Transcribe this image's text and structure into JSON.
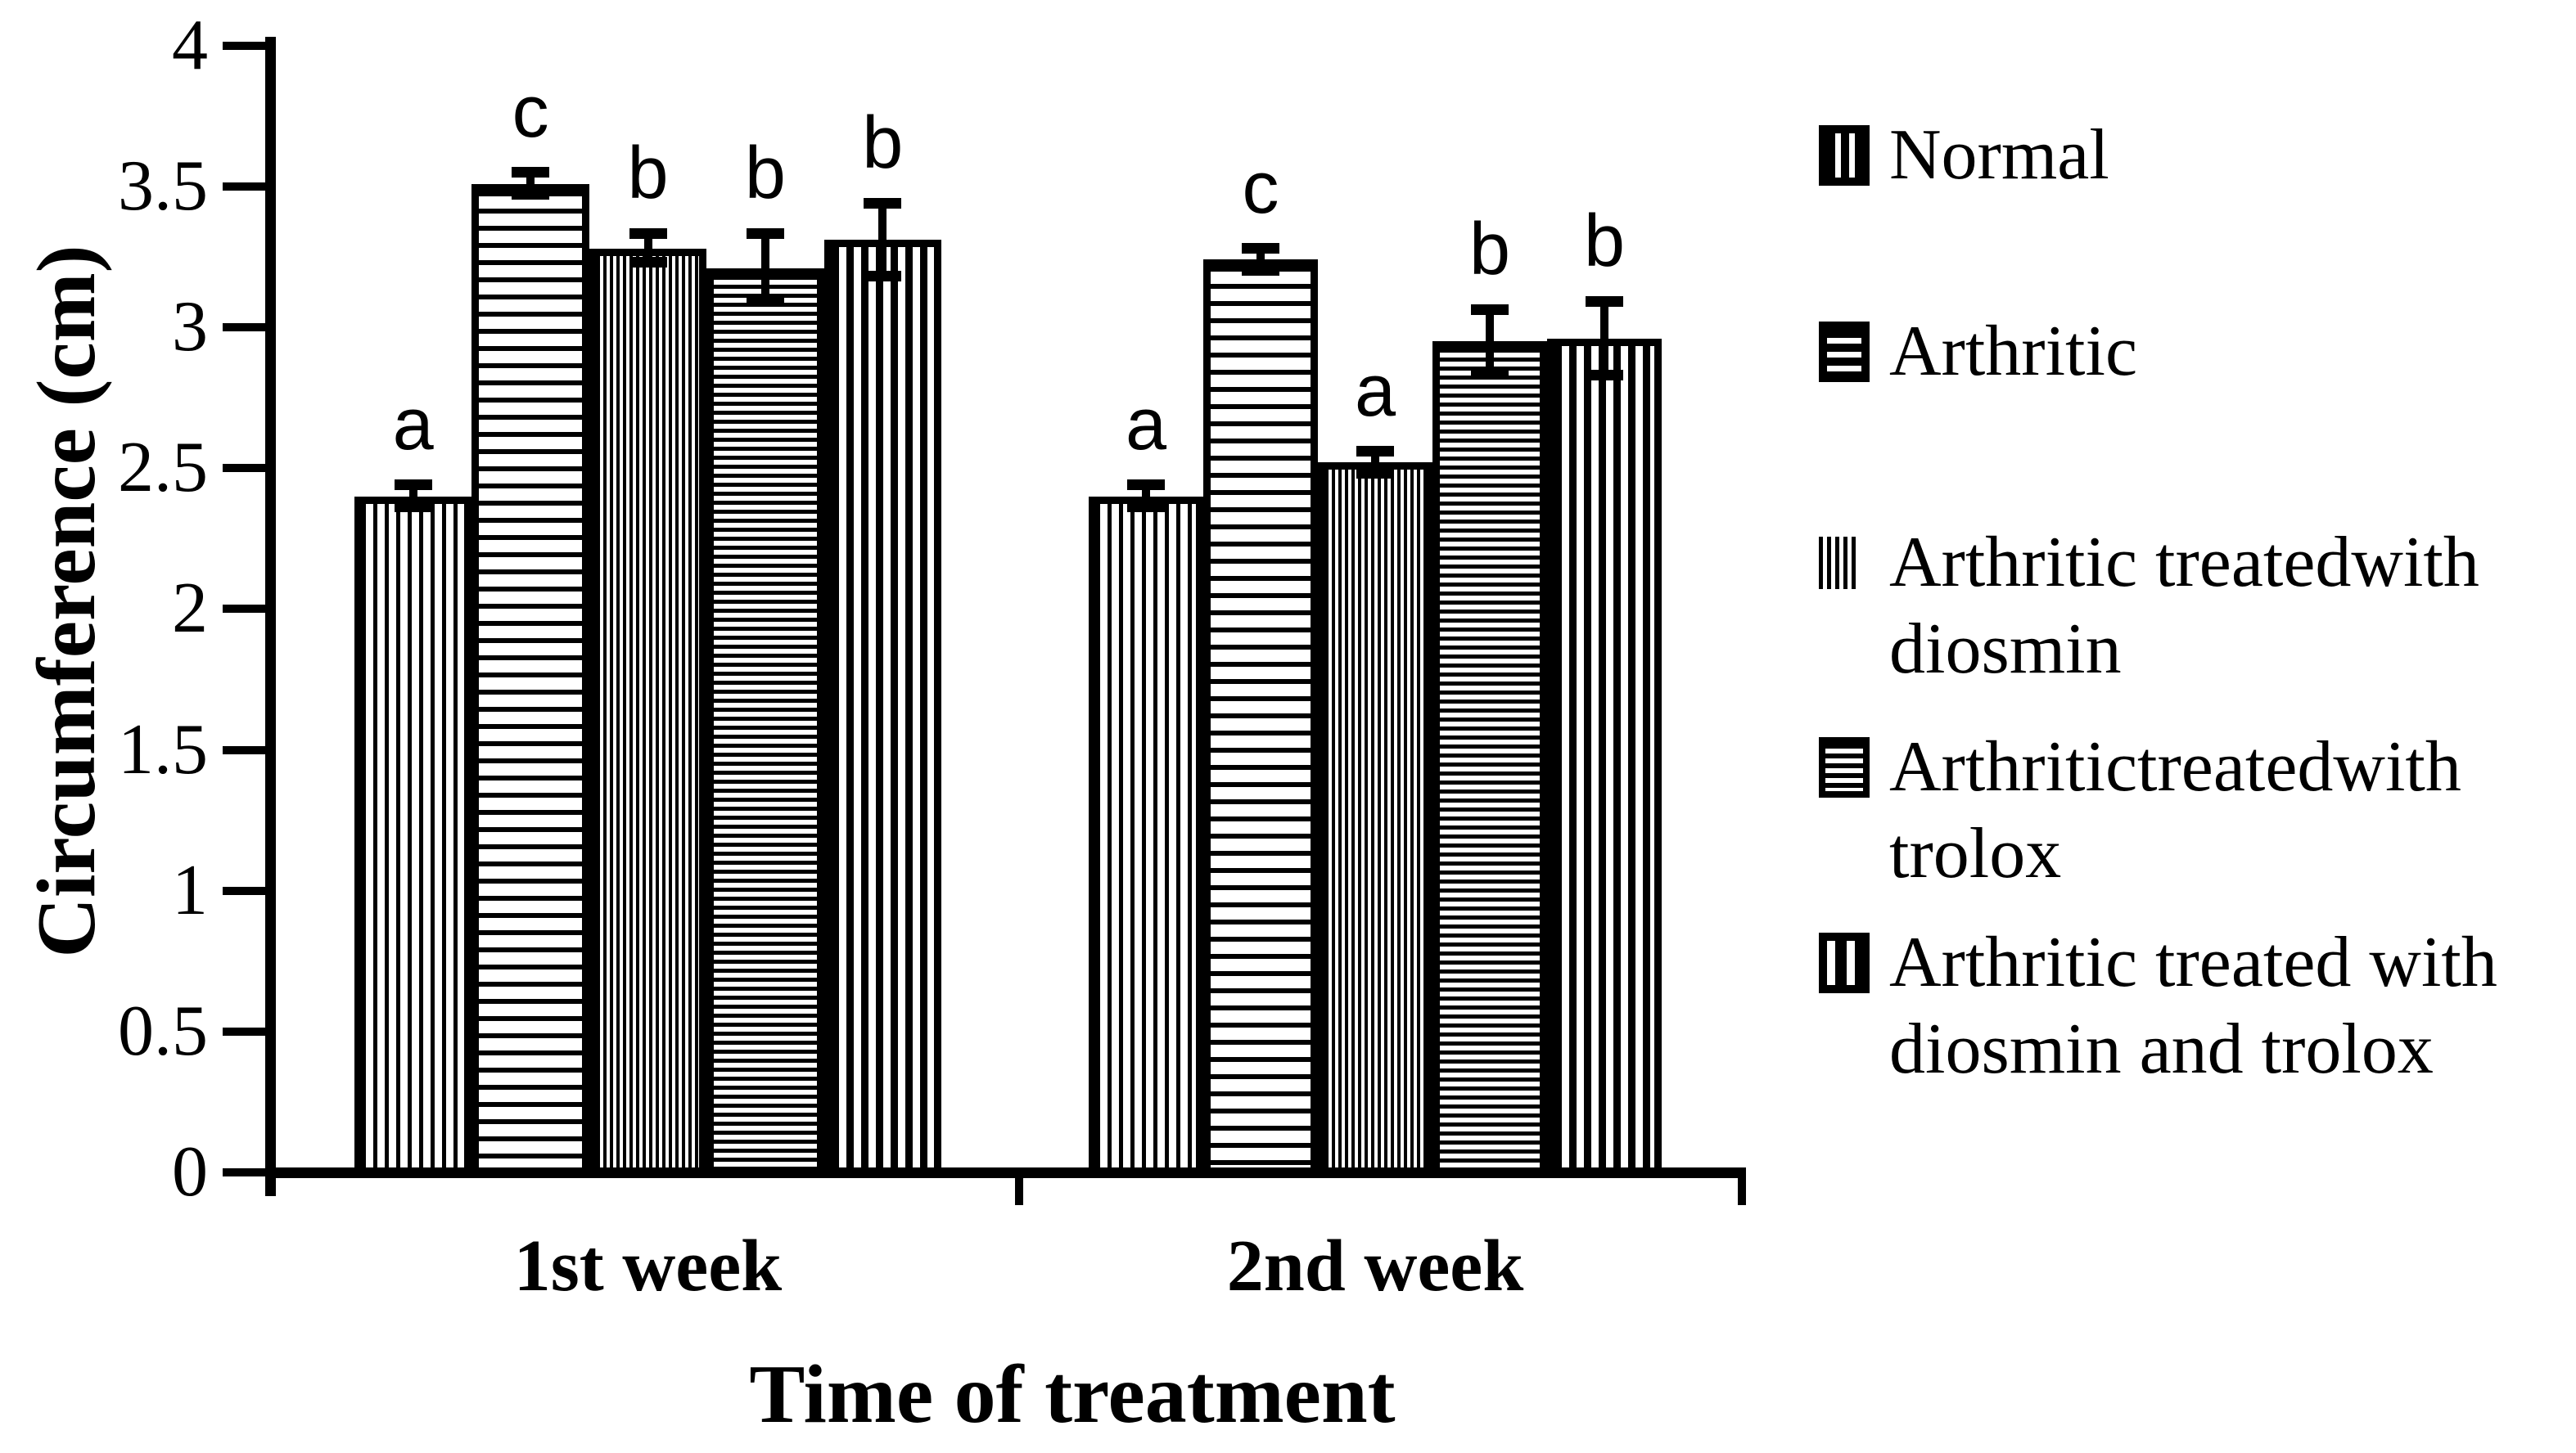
{
  "chart_data": {
    "type": "bar",
    "title": "",
    "xlabel": "Time of treatment",
    "ylabel": "Circumference (cm)",
    "ylim": [
      0,
      4
    ],
    "yticks": [
      4,
      3.5,
      3,
      2.5,
      2,
      1.5,
      1,
      0.5,
      0
    ],
    "grid": false,
    "legend_position": "right",
    "categories": [
      "1st week",
      "2nd week"
    ],
    "series": [
      {
        "name": "Normal",
        "pattern": "vertical-medium",
        "values": [
          2.4,
          2.4
        ],
        "errors": [
          0.04,
          0.04
        ],
        "letters": [
          "a",
          "a"
        ]
      },
      {
        "name": "Arthritic",
        "pattern": "horizontal-wide",
        "values": [
          3.51,
          3.24
        ],
        "errors": [
          0.04,
          0.04
        ],
        "letters": [
          "c",
          "c"
        ]
      },
      {
        "name": "Arthritic treatedwith diosmin",
        "pattern": "vertical-dense",
        "values": [
          3.28,
          2.52
        ],
        "errors": [
          0.05,
          0.04
        ],
        "letters": [
          "b",
          "a"
        ]
      },
      {
        "name": "Arthritictreatedwith trolox",
        "pattern": "horizontal-dense",
        "values": [
          3.21,
          2.95
        ],
        "errors": [
          0.12,
          0.11
        ],
        "letters": [
          "b",
          "b"
        ]
      },
      {
        "name": "Arthritic treated with diosmin and trolox",
        "pattern": "vertical-wide",
        "values": [
          3.31,
          2.96
        ],
        "errors": [
          0.13,
          0.13
        ],
        "letters": [
          "b",
          "b"
        ]
      }
    ],
    "legend": [
      {
        "lines": [
          "Normal"
        ],
        "pattern": "vertical-medium"
      },
      {
        "lines": [
          "Arthritic"
        ],
        "pattern": "horizontal-wide"
      },
      {
        "lines": [
          "Arthritic treatedwith",
          "diosmin"
        ],
        "pattern": "vertical-dense"
      },
      {
        "lines": [
          "Arthritictreatedwith",
          "trolox"
        ],
        "pattern": "horizontal-dense"
      },
      {
        "lines": [
          "Arthritic treated with",
          "diosmin and trolox"
        ],
        "pattern": "vertical-wide"
      }
    ]
  },
  "colors": {
    "foreground": "#000000",
    "background": "#ffffff"
  }
}
